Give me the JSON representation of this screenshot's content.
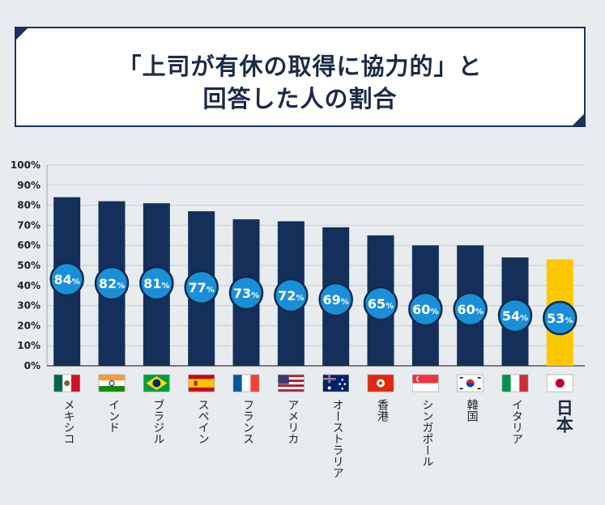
{
  "title": {
    "line1": "「上司が有休の取得に協力的」と",
    "line2": "回答した人の割合"
  },
  "colors": {
    "bar": "#14305a",
    "highlight_bar": "#fcc800",
    "label_circle": "#1a8fd8",
    "label_circle_border": "#0d2a4e",
    "grid": "#c9ced3"
  },
  "chart_data": {
    "type": "bar",
    "categories": [
      "メキシコ",
      "インド",
      "ブラジル",
      "スペイン",
      "フランス",
      "アメリカ",
      "オーストラリア",
      "香港",
      "シンガポール",
      "韓国",
      "イタリア",
      "日本"
    ],
    "values": [
      84,
      82,
      81,
      77,
      73,
      72,
      69,
      65,
      60,
      60,
      54,
      53
    ],
    "data_labels": [
      "84",
      "82",
      "81",
      "77",
      "73",
      "72",
      "69",
      "65",
      "60",
      "60",
      "54",
      "53"
    ],
    "label_unit": "%",
    "highlight": "日本",
    "ylim": [
      0,
      100
    ],
    "yticks": [
      "0%",
      "10%",
      "20%",
      "30%",
      "40%",
      "50%",
      "60%",
      "70%",
      "80%",
      "90%",
      "100%"
    ],
    "grid": true,
    "flags": [
      "mexico-flag-icon",
      "india-flag-icon",
      "brazil-flag-icon",
      "spain-flag-icon",
      "france-flag-icon",
      "usa-flag-icon",
      "australia-flag-icon",
      "hong-kong-flag-icon",
      "singapore-flag-icon",
      "korea-flag-icon",
      "italy-flag-icon",
      "japan-flag-icon"
    ]
  }
}
